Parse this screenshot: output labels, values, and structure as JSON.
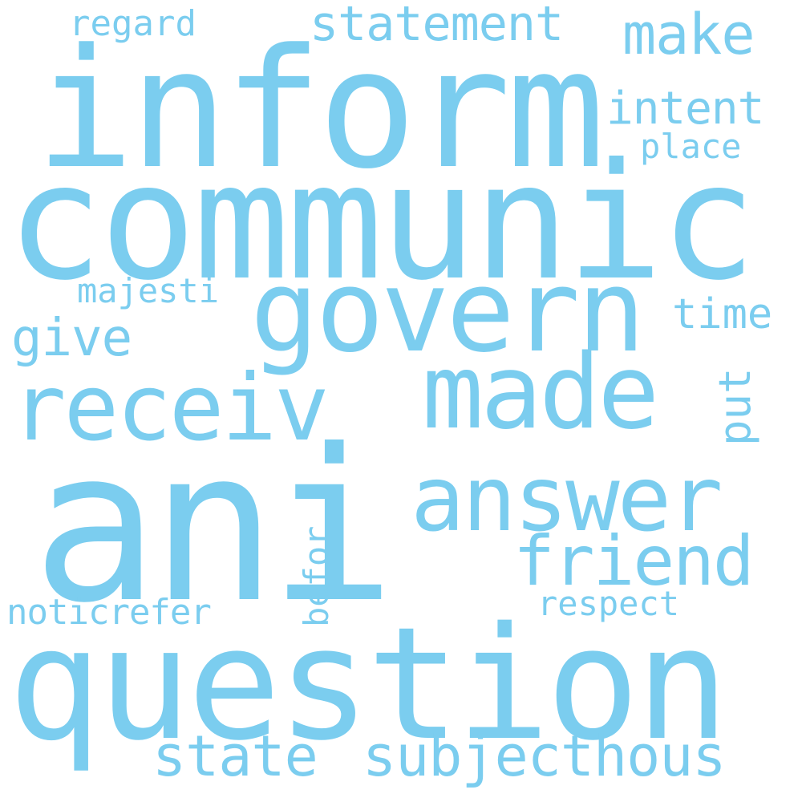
{
  "word_color": "#7bcdef",
  "background": "#ffffff",
  "words": {
    "w_inform": "inform",
    "w_communic": "communic",
    "w_ani": "ani",
    "w_question": "question",
    "w_govern": "govern",
    "w_receiv": "receiv",
    "w_made": "made",
    "w_answer": "answer",
    "w_friend": "friend",
    "w_statement": "statement",
    "w_make": "make",
    "w_intent": "intent",
    "w_place": "place",
    "w_regard": "regard",
    "w_majesti": "majesti",
    "w_time": "time",
    "w_give": "give",
    "w_put": "put",
    "w_befor": "befor",
    "w_noticrefer": "noticrefer",
    "w_respect": "respect",
    "w_state": "state",
    "w_subjecthous": "subjecthous"
  }
}
